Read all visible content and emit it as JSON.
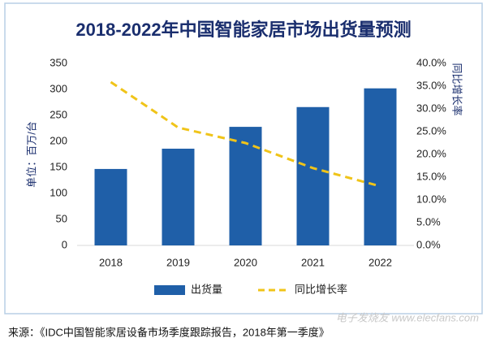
{
  "chart_data": {
    "type": "bar",
    "title": "2018-2022年中国智能家居市场出货量预测",
    "y_label": "单位：百万/台",
    "y2_label": "同比增长率",
    "categories": [
      "2018",
      "2019",
      "2020",
      "2021",
      "2022"
    ],
    "series": [
      {
        "name": "出货量",
        "type": "bar",
        "color": "#1f5fa8",
        "values": [
          147,
          186,
          228,
          266,
          302
        ]
      },
      {
        "name": "同比增长率",
        "type": "line",
        "axis": "y2",
        "color": "#f0c419",
        "values": [
          35.9,
          25.9,
          22.5,
          17.0,
          13.0
        ]
      }
    ],
    "ylim": [
      0,
      350
    ],
    "yticks": [
      0,
      50,
      100,
      150,
      200,
      250,
      300,
      350
    ],
    "y2lim": [
      0,
      40
    ],
    "y2ticks": [
      {
        "value": 0,
        "label": "0.0%"
      },
      {
        "value": 5,
        "label": "5.0%"
      },
      {
        "value": 10,
        "label": "10.0%"
      },
      {
        "value": 15,
        "label": "15.0%"
      },
      {
        "value": 20,
        "label": "20.0%"
      },
      {
        "value": 25,
        "label": "25.0%"
      },
      {
        "value": 30,
        "label": "30.0%"
      },
      {
        "value": 35,
        "label": "35.0%"
      },
      {
        "value": 40,
        "label": "40.0%"
      }
    ],
    "grid": false,
    "legend": "bottom",
    "source": "来源：《IDC中国智能家居设备市场季度跟踪报告，2018年第一季度》",
    "watermark": "电子发烧友 www.elecfans.com"
  }
}
